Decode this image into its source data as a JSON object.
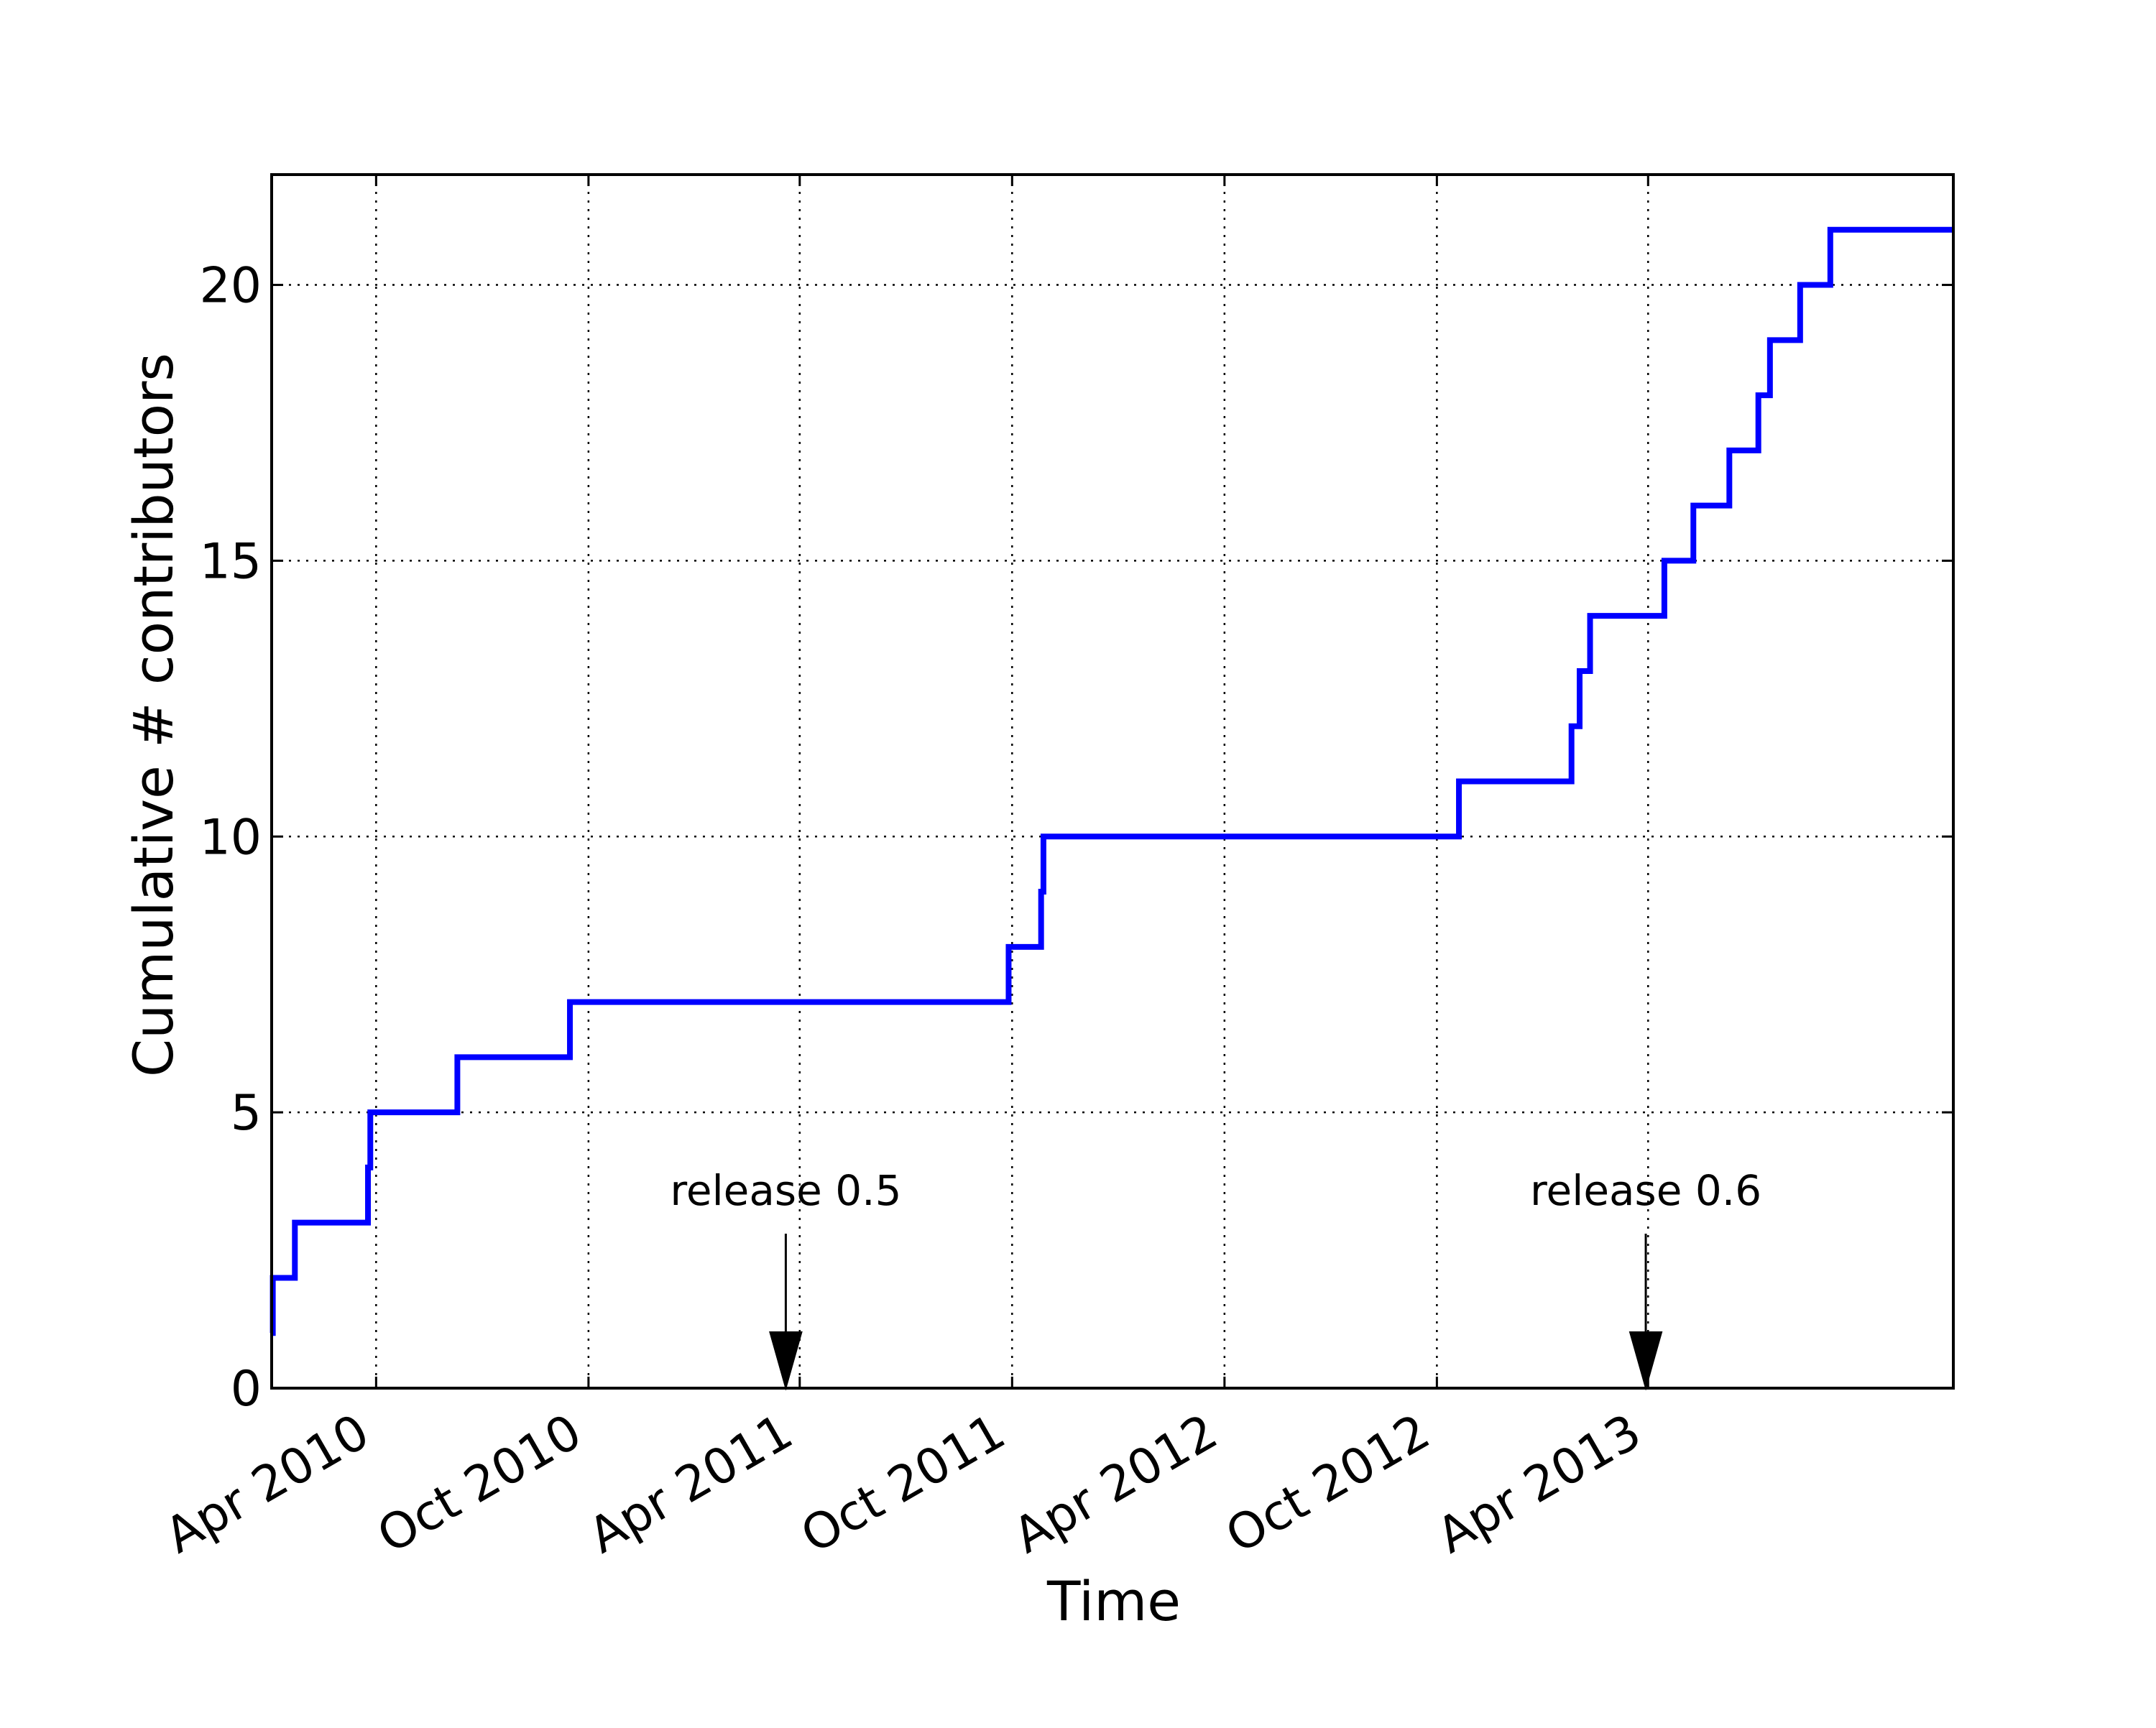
{
  "chart_data": {
    "type": "line",
    "step": true,
    "title": "",
    "xlabel": "Time",
    "ylabel": "Cumulative # contributors",
    "xlim": [
      "2010-01-01",
      "2013-12-20"
    ],
    "ylim": [
      0,
      22
    ],
    "yticks": [
      0,
      5,
      10,
      15,
      20
    ],
    "xticks": [
      {
        "date": "2010-04-01",
        "label": "Apr 2010"
      },
      {
        "date": "2010-10-01",
        "label": "Oct 2010"
      },
      {
        "date": "2011-04-01",
        "label": "Apr 2011"
      },
      {
        "date": "2011-10-01",
        "label": "Oct 2011"
      },
      {
        "date": "2012-04-01",
        "label": "Apr 2012"
      },
      {
        "date": "2012-10-01",
        "label": "Oct 2012"
      },
      {
        "date": "2013-04-01",
        "label": "Apr 2013"
      }
    ],
    "grid": true,
    "series": [
      {
        "color": "#0000ff",
        "points": [
          {
            "x": "2010-01-01",
            "y": 1
          },
          {
            "x": "2010-01-02",
            "y": 2
          },
          {
            "x": "2010-01-21",
            "y": 3
          },
          {
            "x": "2010-03-25",
            "y": 4
          },
          {
            "x": "2010-03-27",
            "y": 5
          },
          {
            "x": "2010-06-10",
            "y": 6
          },
          {
            "x": "2010-09-15",
            "y": 7
          },
          {
            "x": "2011-09-28",
            "y": 8
          },
          {
            "x": "2011-10-26",
            "y": 9
          },
          {
            "x": "2011-10-28",
            "y": 10
          },
          {
            "x": "2012-10-20",
            "y": 11
          },
          {
            "x": "2013-01-25",
            "y": 12
          },
          {
            "x": "2013-02-01",
            "y": 13
          },
          {
            "x": "2013-02-10",
            "y": 14
          },
          {
            "x": "2013-04-15",
            "y": 15
          },
          {
            "x": "2013-05-10",
            "y": 16
          },
          {
            "x": "2013-06-10",
            "y": 17
          },
          {
            "x": "2013-07-05",
            "y": 18
          },
          {
            "x": "2013-07-15",
            "y": 19
          },
          {
            "x": "2013-08-10",
            "y": 20
          },
          {
            "x": "2013-09-05",
            "y": 21
          },
          {
            "x": "2013-12-20",
            "y": 21
          }
        ]
      }
    ],
    "annotations": [
      {
        "label": "release 0.5",
        "x": "2011-03-20",
        "y": 0,
        "arrow": "down"
      },
      {
        "label": "release 0.6",
        "x": "2013-03-30",
        "y": 0,
        "arrow": "down"
      }
    ]
  }
}
